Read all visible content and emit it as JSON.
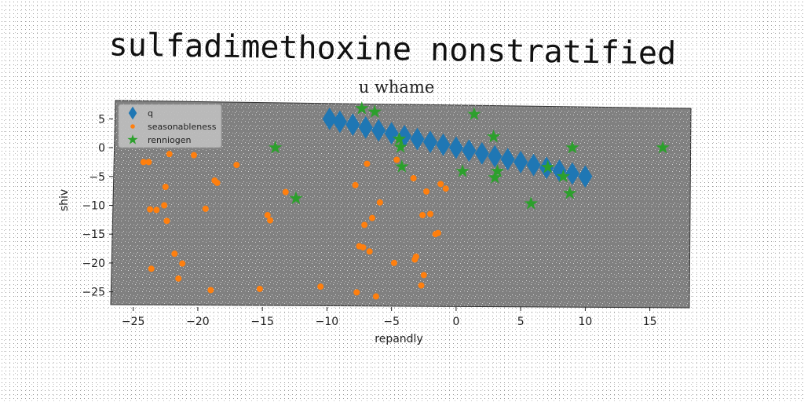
{
  "chart_data": {
    "type": "scatter",
    "title": "sulfadimethoxine nonstratified",
    "subtitle": "u whame",
    "xlabel": "repandly",
    "ylabel": "shiv",
    "xlim": [
      -26.5,
      18
    ],
    "ylim": [
      -27.5,
      7.5
    ],
    "xticks": [
      -25,
      -20,
      -15,
      -10,
      -5,
      0,
      5,
      10,
      15
    ],
    "yticks": [
      5,
      0,
      -5,
      -10,
      -15,
      -20,
      -25
    ],
    "grid": false,
    "legend_position": "top-left",
    "background": "#808080",
    "series": [
      {
        "name": "q",
        "marker": "diamond",
        "color": "#1f77b4",
        "x": [
          -9.8,
          -9.0,
          -8.0,
          -7.0,
          -6.0,
          -5.0,
          -4.0,
          -3.0,
          -2.0,
          -1.0,
          0.0,
          1.0,
          2.0,
          3.0,
          4.0,
          5.0,
          6.0,
          7.0,
          8.0,
          9.0,
          10.0
        ],
        "y": [
          5.0,
          4.5,
          4.0,
          3.5,
          3.0,
          2.5,
          2.0,
          1.5,
          1.0,
          0.5,
          0.0,
          -0.5,
          -1.0,
          -1.5,
          -2.0,
          -2.5,
          -3.0,
          -3.5,
          -4.0,
          -4.5,
          -5.0
        ]
      },
      {
        "name": "seasonableness",
        "marker": "circle",
        "color": "#ff7f0e",
        "x": [
          -24.2,
          -23.8,
          -23.7,
          -23.6,
          -23.2,
          -22.6,
          -22.5,
          -22.4,
          -22.2,
          -21.8,
          -21.5,
          -21.2,
          -20.3,
          -19.4,
          -19.0,
          -18.7,
          -18.5,
          -17.0,
          -15.2,
          -14.6,
          -14.4,
          -13.2,
          -10.5,
          -7.8,
          -7.7,
          -7.5,
          -7.2,
          -7.1,
          -6.9,
          -6.7,
          -6.5,
          -6.2,
          -5.9,
          -4.8,
          -4.6,
          -3.3,
          -3.2,
          -3.1,
          -2.7,
          -2.6,
          -2.5,
          -2.3,
          -2.0,
          -1.6,
          -1.4,
          -1.2,
          -0.8
        ],
        "y": [
          -2.5,
          -2.5,
          -10.7,
          -21.0,
          -10.8,
          -10.0,
          -6.8,
          -12.7,
          -1.1,
          -18.4,
          -22.7,
          -20.1,
          -1.3,
          -10.6,
          -24.7,
          -5.7,
          -6.1,
          -3.0,
          -24.5,
          -11.7,
          -12.6,
          -7.7,
          -24.1,
          -6.5,
          -25.1,
          -17.1,
          -17.3,
          -13.4,
          -2.8,
          -18.0,
          -12.2,
          -25.8,
          -9.5,
          -20.0,
          -2.1,
          -5.3,
          -19.4,
          -18.9,
          -23.9,
          -11.7,
          -22.1,
          -7.6,
          -11.5,
          -15.0,
          -14.8,
          -6.3,
          -7.1
        ]
      },
      {
        "name": "renniogen",
        "marker": "star",
        "color": "#2ca02c",
        "x": [
          -14.0,
          -12.4,
          -7.3,
          -6.3,
          -4.4,
          -4.3,
          -4.2,
          0.5,
          1.4,
          2.9,
          3.0,
          3.2,
          5.8,
          7.1,
          8.3,
          8.8,
          9.0,
          16.0
        ],
        "y": [
          0.0,
          -8.8,
          6.8,
          6.2,
          1.5,
          0.1,
          -3.3,
          -4.1,
          5.8,
          1.9,
          -5.2,
          -4.1,
          -9.7,
          -3.4,
          -5.0,
          -7.9,
          0.0,
          0.0
        ]
      }
    ]
  }
}
